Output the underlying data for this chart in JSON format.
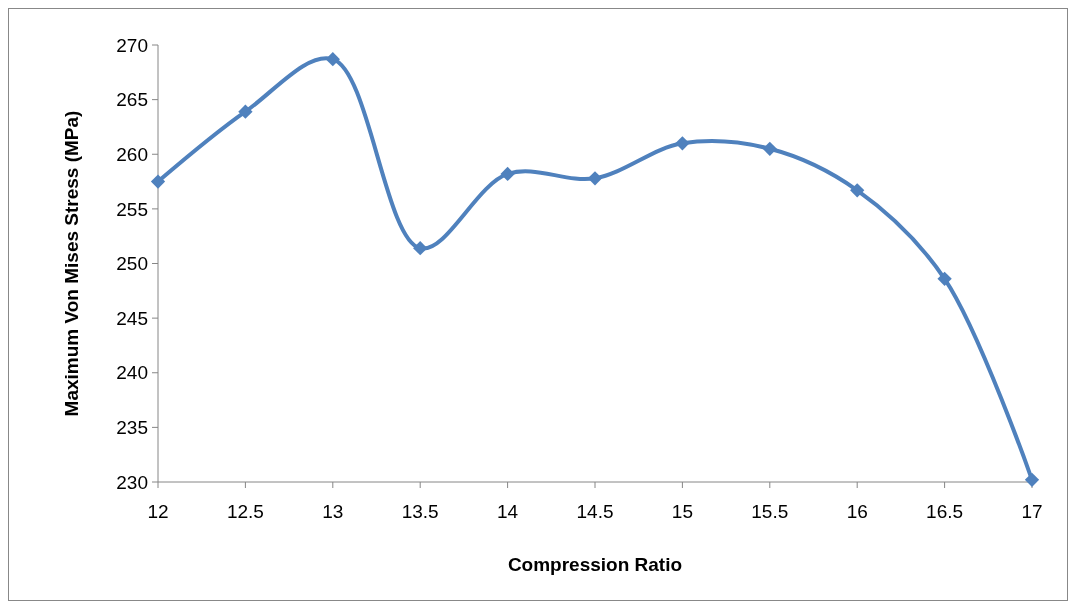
{
  "chart_data": {
    "type": "line",
    "xlabel": "Compression Ratio",
    "ylabel": "Maximum Von Mises Stress (MPa)",
    "x": [
      12,
      12.5,
      13,
      13.5,
      14,
      14.5,
      15,
      15.5,
      16,
      16.5,
      17
    ],
    "series": [
      {
        "color": "#4f81bd",
        "values": [
          257.5,
          263.9,
          268.7,
          251.4,
          258.2,
          257.8,
          261,
          260.5,
          256.7,
          248.6,
          230.2
        ]
      }
    ],
    "xlim": [
      12,
      17
    ],
    "xticks": [
      12,
      12.5,
      13,
      13.5,
      14,
      14.5,
      15,
      15.5,
      16,
      16.5,
      17
    ],
    "ylim": [
      230,
      270
    ],
    "yticks": [
      230,
      235,
      240,
      245,
      250,
      255,
      260,
      265,
      270
    ],
    "grid": false,
    "marker": "diamond",
    "line_style": "solid"
  }
}
